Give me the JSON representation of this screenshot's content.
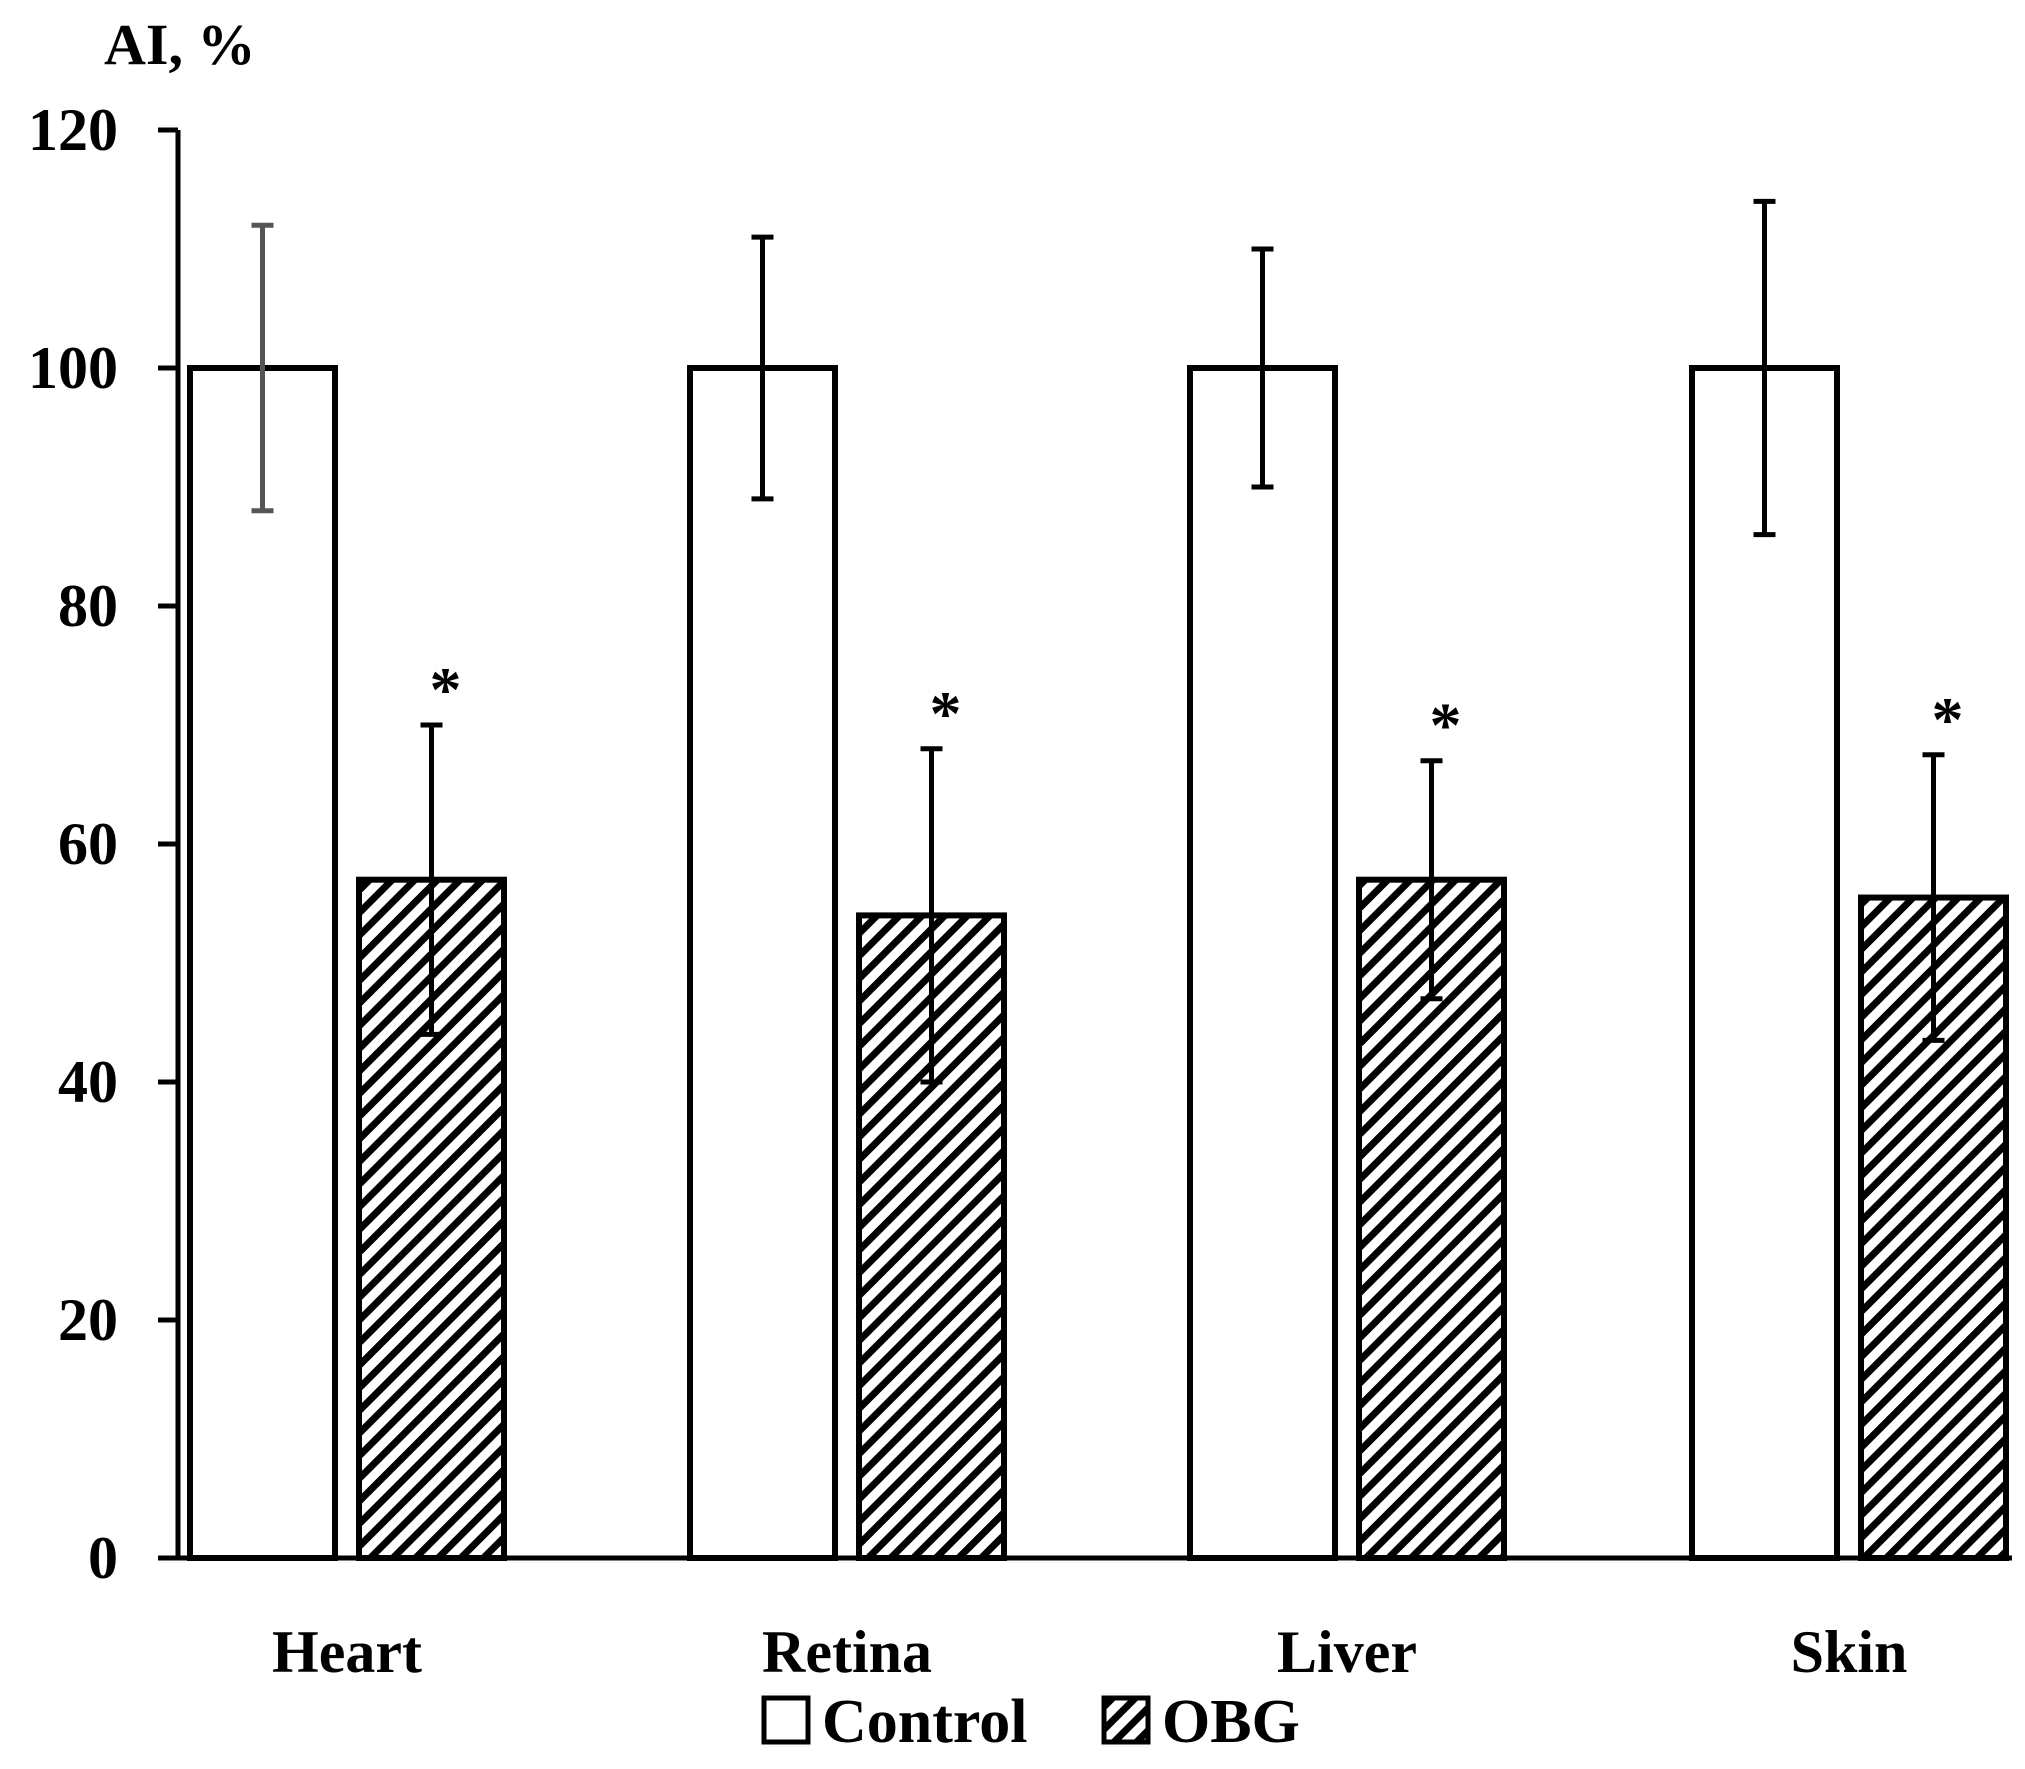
{
  "chart_data": {
    "type": "bar",
    "title": "",
    "ylabel": "AI, %",
    "xlabel": "",
    "ylim": [
      0,
      120
    ],
    "yticks": [
      0,
      20,
      40,
      60,
      80,
      100,
      120
    ],
    "grid": false,
    "legend_position": "bottom",
    "categories": [
      "Heart",
      "Retina",
      "Liver",
      "Skin"
    ],
    "series": [
      {
        "name": "Control",
        "pattern": "none",
        "values": [
          100,
          100,
          100,
          100
        ],
        "errors": [
          12,
          11,
          10,
          14
        ],
        "significance": [
          "",
          "",
          "",
          ""
        ]
      },
      {
        "name": "OBG",
        "pattern": "diagonal-hatch",
        "values": [
          57,
          54,
          57,
          55.5
        ],
        "errors": [
          13,
          14,
          10,
          12
        ],
        "significance": [
          "*",
          "*",
          "*",
          "*"
        ]
      }
    ],
    "colors": {
      "bar_fill": "#ffffff",
      "stroke": "#000000",
      "heart_control_error": "#555555"
    }
  }
}
